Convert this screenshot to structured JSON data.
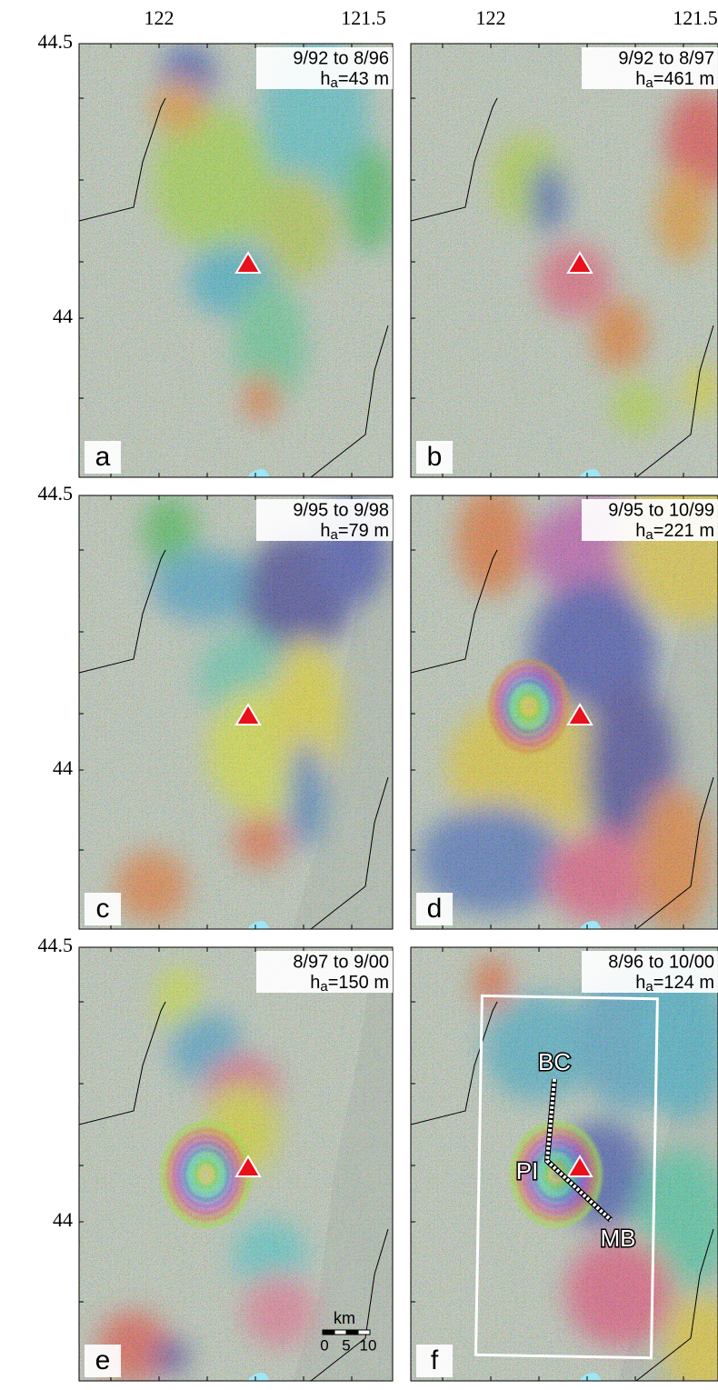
{
  "axes": {
    "longitude_labels": [
      "122",
      "121.5"
    ],
    "latitude_labels": [
      "44.5",
      "44"
    ]
  },
  "height_symbol": {
    "base": "h",
    "subscript": "a"
  },
  "panels": [
    {
      "letter": "a",
      "dates": "9/92 to 8/96",
      "height": "=43 m"
    },
    {
      "letter": "b",
      "dates": "9/92 to 8/97",
      "height": "=461 m"
    },
    {
      "letter": "c",
      "dates": "9/95 to 9/98",
      "height": "=79 m"
    },
    {
      "letter": "d",
      "dates": "9/95 to 10/99",
      "height": "=221 m"
    },
    {
      "letter": "e",
      "dates": "8/97 to 9/00",
      "height": "=150 m"
    },
    {
      "letter": "f",
      "dates": "8/96 to 10/00",
      "height": "=124 m"
    }
  ],
  "scale_bar": {
    "unit": "km",
    "labels": [
      "0",
      "5",
      "10"
    ]
  },
  "profile_labels": [
    "BC",
    "PI",
    "MB"
  ]
}
